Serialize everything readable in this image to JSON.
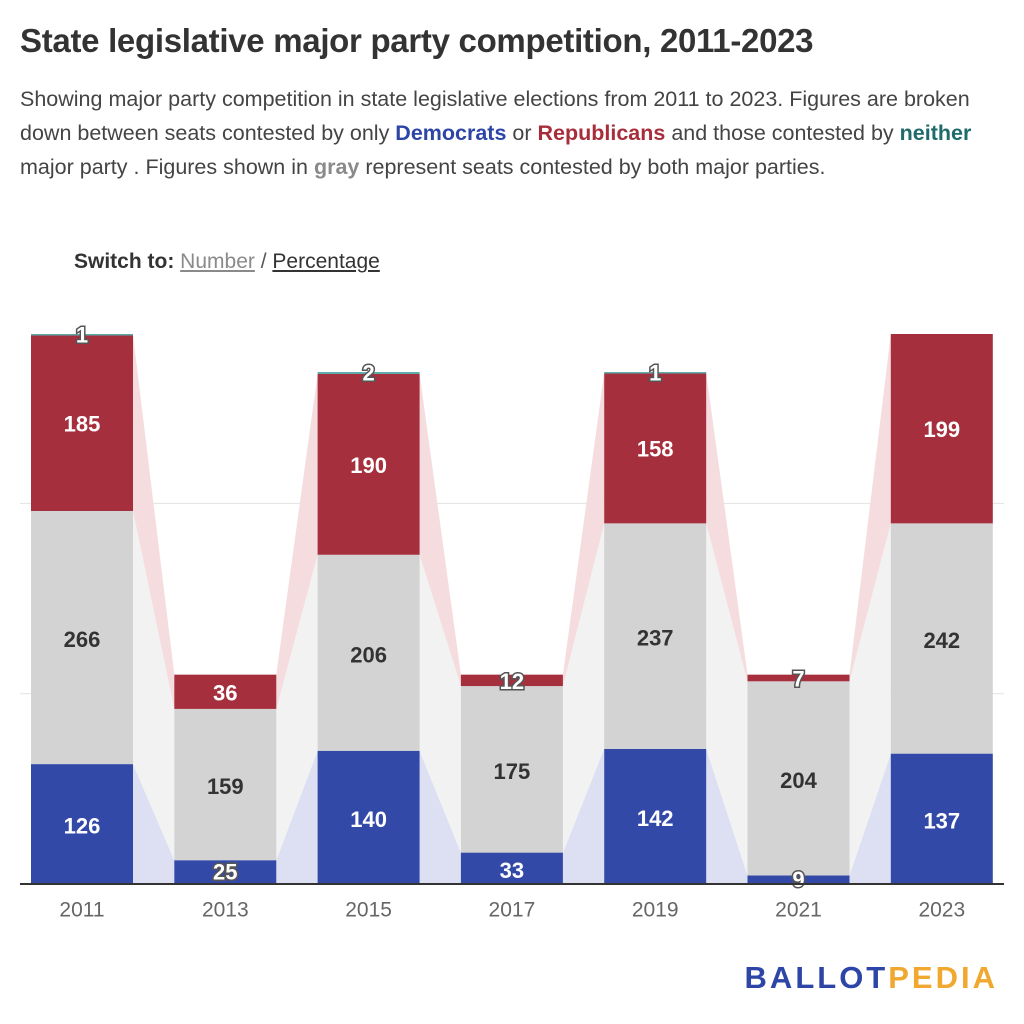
{
  "header": {
    "title": "State legislative major party competition, 2011-2023",
    "subtitle_parts": [
      "Showing major party competition in state legislative elections from 2011 to 2023. Figures are broken down between seats contested by only ",
      "Democrats",
      " or ",
      "Republicans",
      " and those contested by ",
      "neither",
      " major party . Figures shown in ",
      "gray",
      " represent seats contested by both major parties."
    ]
  },
  "switch": {
    "label": "Switch to:",
    "option_number": "Number",
    "separator": "/",
    "option_percentage": "Percentage"
  },
  "colors": {
    "democrats": "#3249a8",
    "republicans": "#a62f3d",
    "both": "#d3d3d3",
    "neither": "#5aa8a8",
    "dem_band": "#dde0f2",
    "rep_band": "#f5dcdf",
    "both_band": "#f2f2f2"
  },
  "chart_data": {
    "type": "bar",
    "stacked": true,
    "categories": [
      "2011",
      "2013",
      "2015",
      "2017",
      "2019",
      "2021",
      "2023"
    ],
    "series": [
      {
        "name": "Democrats",
        "values": [
          126,
          25,
          140,
          33,
          142,
          9,
          137
        ]
      },
      {
        "name": "Republicans",
        "values": [
          185,
          36,
          190,
          12,
          158,
          7,
          199
        ]
      },
      {
        "name": "neither",
        "values": [
          1,
          0,
          2,
          0,
          1,
          0,
          0
        ]
      }
    ],
    "both_major_parties": [
      266,
      159,
      206,
      175,
      237,
      204,
      242
    ],
    "ylim": [
      0,
      578
    ],
    "grid": true
  },
  "brand": {
    "part1": "BALLOT",
    "part2": "PEDIA"
  }
}
